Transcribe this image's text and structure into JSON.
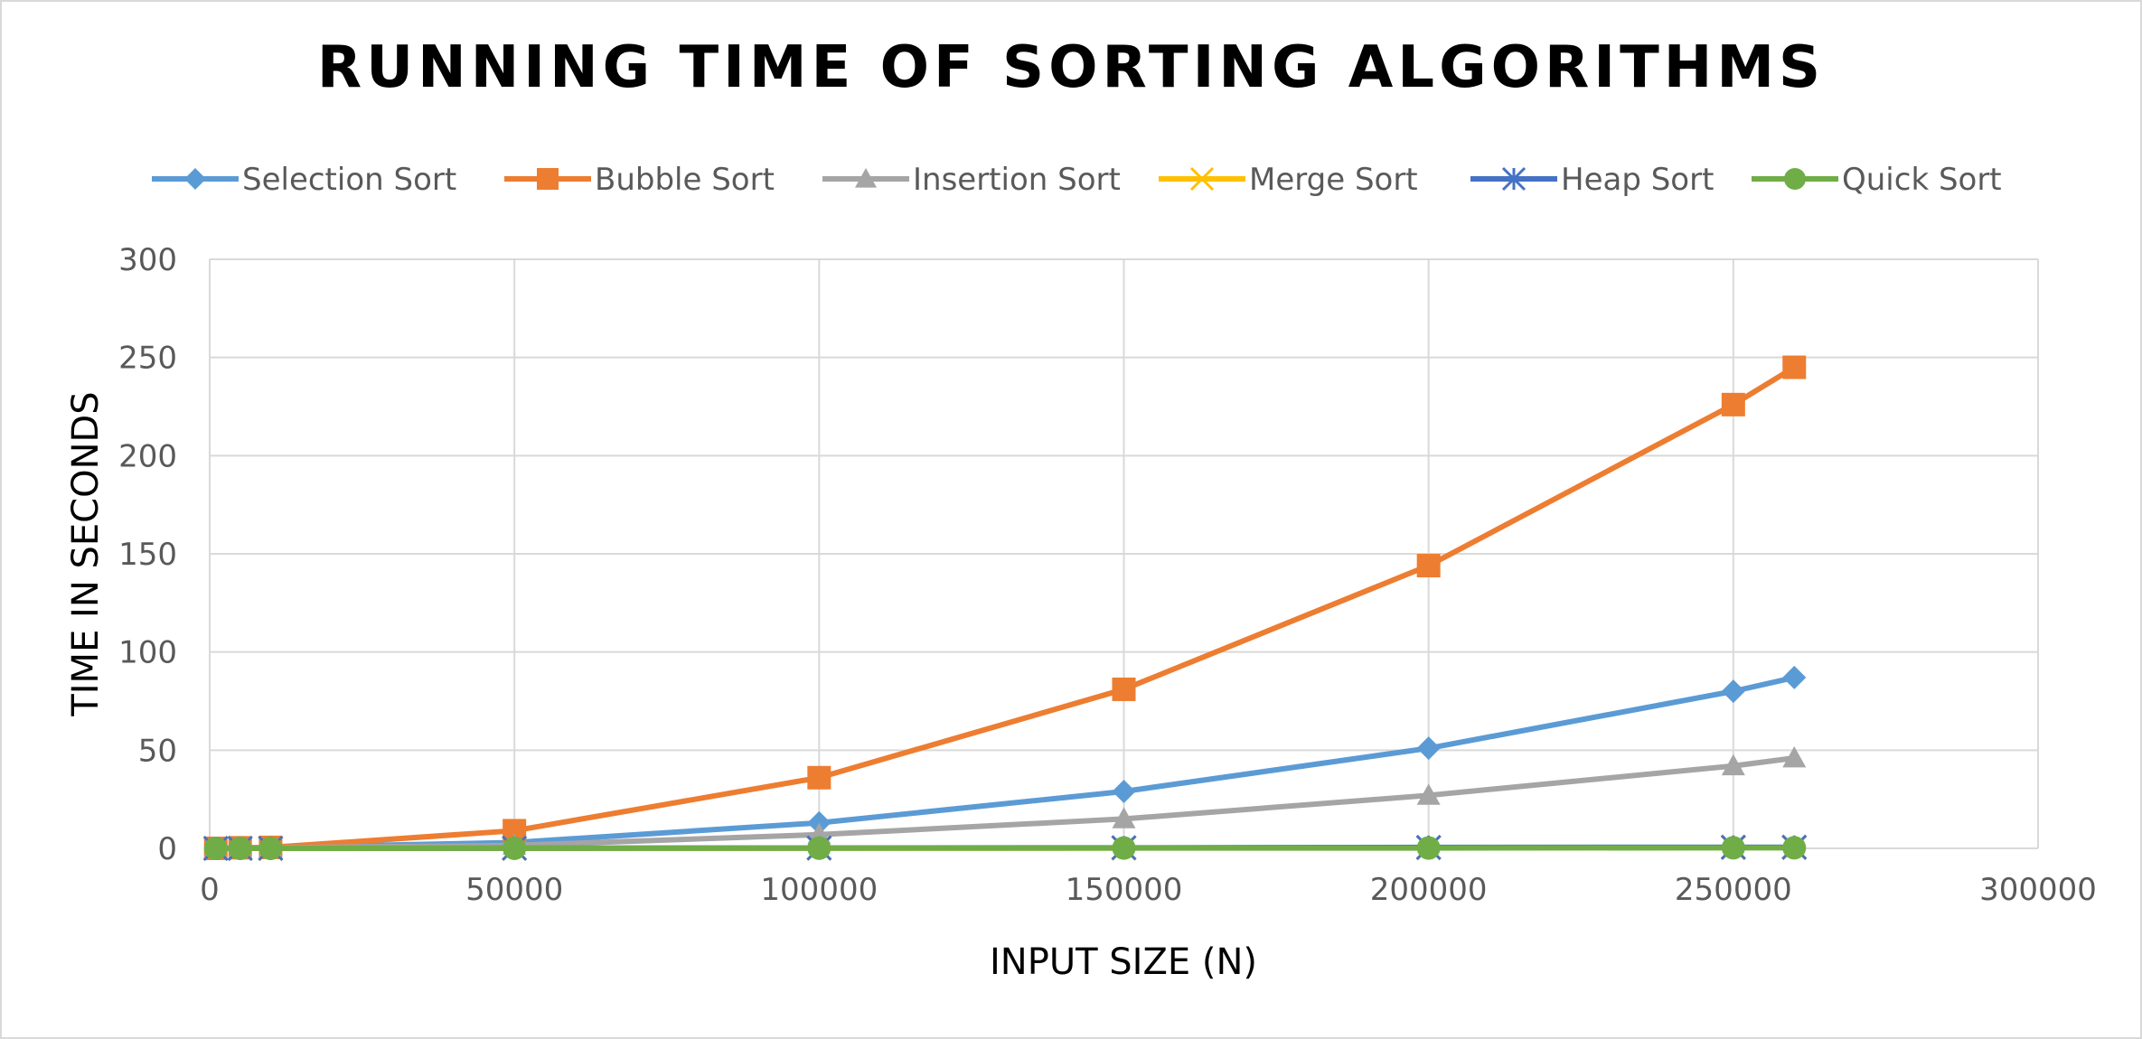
{
  "chart_data": {
    "type": "line",
    "title": "RUNNING TIME OF SORTING ALGORITHMS",
    "xlabel": "INPUT SIZE (N)",
    "ylabel": "TIME IN SECONDS",
    "xlim": [
      0,
      300000
    ],
    "ylim": [
      0,
      300
    ],
    "xticks": [
      0,
      50000,
      100000,
      150000,
      200000,
      250000,
      300000
    ],
    "yticks": [
      0,
      50,
      100,
      150,
      200,
      250,
      300
    ],
    "grid": true,
    "legend_position": "top",
    "x": [
      1000,
      5000,
      10000,
      50000,
      100000,
      150000,
      200000,
      250000,
      260000
    ],
    "series": [
      {
        "name": "Selection Sort",
        "color": "#5b9bd5",
        "marker": "diamond",
        "values": [
          0.01,
          0.2,
          0.5,
          3,
          13,
          29,
          51,
          80,
          87
        ]
      },
      {
        "name": "Bubble Sort",
        "color": "#ed7d31",
        "marker": "square",
        "values": [
          0.01,
          0.3,
          0.5,
          9,
          36,
          81,
          144,
          226,
          245
        ]
      },
      {
        "name": "Insertion Sort",
        "color": "#a5a5a5",
        "marker": "triangle",
        "values": [
          0.0,
          0.1,
          0.3,
          1.5,
          7,
          15,
          27,
          42,
          46
        ]
      },
      {
        "name": "Merge Sort",
        "color": "#ffc000",
        "marker": "x",
        "values": [
          0.0,
          0.0,
          0.01,
          0.05,
          0.1,
          0.2,
          0.3,
          0.4,
          0.4
        ]
      },
      {
        "name": "Heap Sort",
        "color": "#4472c4",
        "marker": "star",
        "values": [
          0.0,
          0.0,
          0.01,
          0.1,
          0.2,
          0.3,
          0.5,
          0.6,
          0.6
        ]
      },
      {
        "name": "Quick Sort",
        "color": "#70ad47",
        "marker": "circle",
        "values": [
          0.0,
          0.0,
          0.01,
          0.05,
          0.1,
          0.15,
          0.2,
          0.3,
          0.3
        ]
      }
    ]
  }
}
